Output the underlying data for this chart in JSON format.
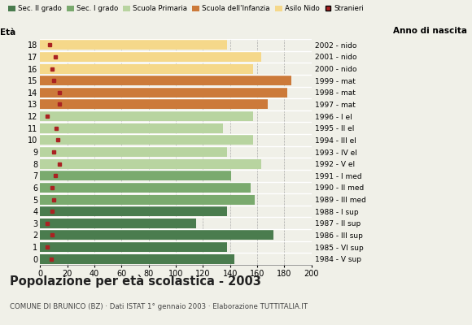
{
  "ages": [
    18,
    17,
    16,
    15,
    14,
    13,
    12,
    11,
    10,
    9,
    8,
    7,
    6,
    5,
    4,
    3,
    2,
    1,
    0
  ],
  "bar_values": [
    143,
    138,
    172,
    115,
    138,
    158,
    155,
    141,
    163,
    138,
    157,
    135,
    157,
    168,
    182,
    185,
    157,
    163,
    138
  ],
  "stranieri": [
    8,
    5,
    9,
    5,
    9,
    10,
    9,
    11,
    14,
    10,
    13,
    12,
    5,
    14,
    14,
    10,
    9,
    11,
    7
  ],
  "right_labels": [
    "1984 - V sup",
    "1985 - VI sup",
    "1986 - III sup",
    "1987 - II sup",
    "1988 - I sup",
    "1989 - III med",
    "1990 - II med",
    "1991 - I med",
    "1992 - V el",
    "1993 - IV el",
    "1994 - III el",
    "1995 - II el",
    "1996 - I el",
    "1997 - mat",
    "1998 - mat",
    "1999 - mat",
    "2000 - nido",
    "2001 - nido",
    "2002 - nido"
  ],
  "bar_colors": [
    "#4a7c4e",
    "#4a7c4e",
    "#4a7c4e",
    "#4a7c4e",
    "#4a7c4e",
    "#7aaa6e",
    "#7aaa6e",
    "#7aaa6e",
    "#b8d4a0",
    "#b8d4a0",
    "#b8d4a0",
    "#b8d4a0",
    "#b8d4a0",
    "#cc7a3a",
    "#cc7a3a",
    "#cc7a3a",
    "#f5d88a",
    "#f5d88a",
    "#f5d88a"
  ],
  "legend_labels": [
    "Sec. II grado",
    "Sec. I grado",
    "Scuola Primaria",
    "Scuola dell'Infanzia",
    "Asilo Nido",
    "Stranieri"
  ],
  "legend_colors": [
    "#4a7c4e",
    "#7aaa6e",
    "#b8d4a0",
    "#cc7a3a",
    "#f5d88a",
    "#aa2222"
  ],
  "title": "Popolazione per età scolastica - 2003",
  "subtitle": "COMUNE DI BRUNICO (BZ) · Dati ISTAT 1° gennaio 2003 · Elaborazione TUTTITALIA.IT",
  "xlabel_eta": "Età",
  "xlabel_anno": "Anno di nascita",
  "xlim": [
    0,
    200
  ],
  "bar_height": 0.82,
  "stranieri_color": "#aa2222",
  "bg_color": "#f0f0e8",
  "plot_bg": "#f0f0e8"
}
